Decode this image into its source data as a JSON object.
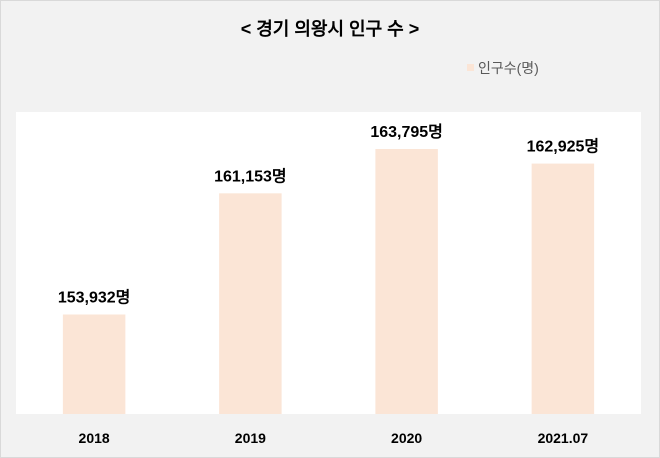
{
  "chart_data": {
    "type": "bar",
    "title": "< 경기 의왕시 인구 수 >",
    "categories": [
      "2018",
      "2019",
      "2020",
      "2021.07"
    ],
    "series": [
      {
        "name": "인구수(명)",
        "values": [
          153932,
          161153,
          163795,
          162925
        ]
      }
    ],
    "data_labels": [
      "153,932명",
      "161,153명",
      "163,795명",
      "162,925명"
    ],
    "ylim": [
      148000,
      166000
    ],
    "grid": false,
    "legend_position": "top-right"
  },
  "colors": {
    "background": "#F2F2F2",
    "border": "#D9D9D9",
    "plot_background": "#FFFFFF",
    "bar": "#FBE5D6",
    "text": "#000000",
    "legend_text": "#595959"
  }
}
